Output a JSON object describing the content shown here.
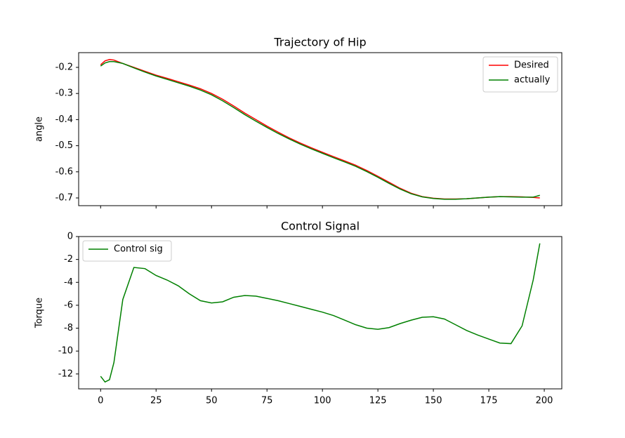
{
  "chart_data": [
    {
      "type": "line",
      "title": "Trajectory of Hip",
      "ylabel": "angle",
      "x": [
        0,
        2,
        4,
        6,
        10,
        15,
        20,
        25,
        30,
        35,
        40,
        45,
        50,
        55,
        60,
        65,
        70,
        75,
        80,
        85,
        90,
        95,
        100,
        105,
        110,
        115,
        120,
        125,
        130,
        135,
        140,
        145,
        150,
        155,
        160,
        165,
        170,
        175,
        180,
        185,
        190,
        195,
        198
      ],
      "series": [
        {
          "name": "Desired",
          "color": "#ff0000",
          "values": [
            -0.19,
            -0.175,
            -0.17,
            -0.172,
            -0.185,
            -0.2,
            -0.215,
            -0.23,
            -0.242,
            -0.255,
            -0.268,
            -0.282,
            -0.3,
            -0.322,
            -0.348,
            -0.375,
            -0.4,
            -0.425,
            -0.448,
            -0.47,
            -0.49,
            -0.508,
            -0.525,
            -0.542,
            -0.558,
            -0.575,
            -0.595,
            -0.617,
            -0.64,
            -0.663,
            -0.682,
            -0.695,
            -0.701,
            -0.704,
            -0.704,
            -0.703,
            -0.7,
            -0.697,
            -0.695,
            -0.695,
            -0.696,
            -0.698,
            -0.7
          ]
        },
        {
          "name": "actually",
          "color": "#008000",
          "values": [
            -0.195,
            -0.183,
            -0.178,
            -0.178,
            -0.185,
            -0.202,
            -0.218,
            -0.233,
            -0.246,
            -0.259,
            -0.272,
            -0.287,
            -0.305,
            -0.328,
            -0.354,
            -0.381,
            -0.406,
            -0.43,
            -0.453,
            -0.474,
            -0.494,
            -0.512,
            -0.529,
            -0.546,
            -0.562,
            -0.579,
            -0.599,
            -0.621,
            -0.644,
            -0.666,
            -0.684,
            -0.696,
            -0.702,
            -0.705,
            -0.705,
            -0.703,
            -0.7,
            -0.697,
            -0.695,
            -0.696,
            -0.697,
            -0.697,
            -0.69
          ]
        }
      ],
      "xlim": [
        -9.9,
        207.9
      ],
      "xticks": [
        0,
        25,
        50,
        75,
        100,
        125,
        150,
        175,
        200
      ],
      "xtick_labels": false,
      "ylim": [
        -0.7296,
        -0.1436
      ],
      "yticks": [
        -0.7,
        -0.6,
        -0.5,
        -0.4,
        -0.3,
        -0.2
      ],
      "legend": "upper right"
    },
    {
      "type": "line",
      "title": "Control Signal",
      "ylabel": "Torque",
      "x": [
        0,
        2,
        4,
        6,
        10,
        15,
        20,
        25,
        30,
        35,
        40,
        45,
        50,
        55,
        60,
        65,
        70,
        75,
        80,
        85,
        90,
        95,
        100,
        105,
        110,
        115,
        120,
        125,
        130,
        135,
        140,
        145,
        150,
        155,
        160,
        165,
        170,
        175,
        180,
        185,
        190,
        195,
        198
      ],
      "series": [
        {
          "name": "Control sig",
          "color": "#008000",
          "values": [
            -12.2,
            -12.7,
            -12.5,
            -11,
            -5.5,
            -2.7,
            -2.8,
            -3.4,
            -3.8,
            -4.3,
            -5,
            -5.6,
            -5.8,
            -5.7,
            -5.3,
            -5.15,
            -5.2,
            -5.4,
            -5.6,
            -5.85,
            -6.1,
            -6.35,
            -6.6,
            -6.9,
            -7.3,
            -7.7,
            -8.0,
            -8.1,
            -7.95,
            -7.6,
            -7.3,
            -7.05,
            -7.0,
            -7.2,
            -7.7,
            -8.2,
            -8.6,
            -8.95,
            -9.3,
            -9.35,
            -7.8,
            -3.8,
            -0.6
          ]
        }
      ],
      "xlim": [
        -9.9,
        207.9
      ],
      "xticks": [
        0,
        25,
        50,
        75,
        100,
        125,
        150,
        175,
        200
      ],
      "xtick_labels": true,
      "ylim": [
        -13.3,
        0
      ],
      "yticks": [
        -12,
        -10,
        -8,
        -6,
        -4,
        -2,
        0
      ],
      "legend": "upper left"
    }
  ]
}
